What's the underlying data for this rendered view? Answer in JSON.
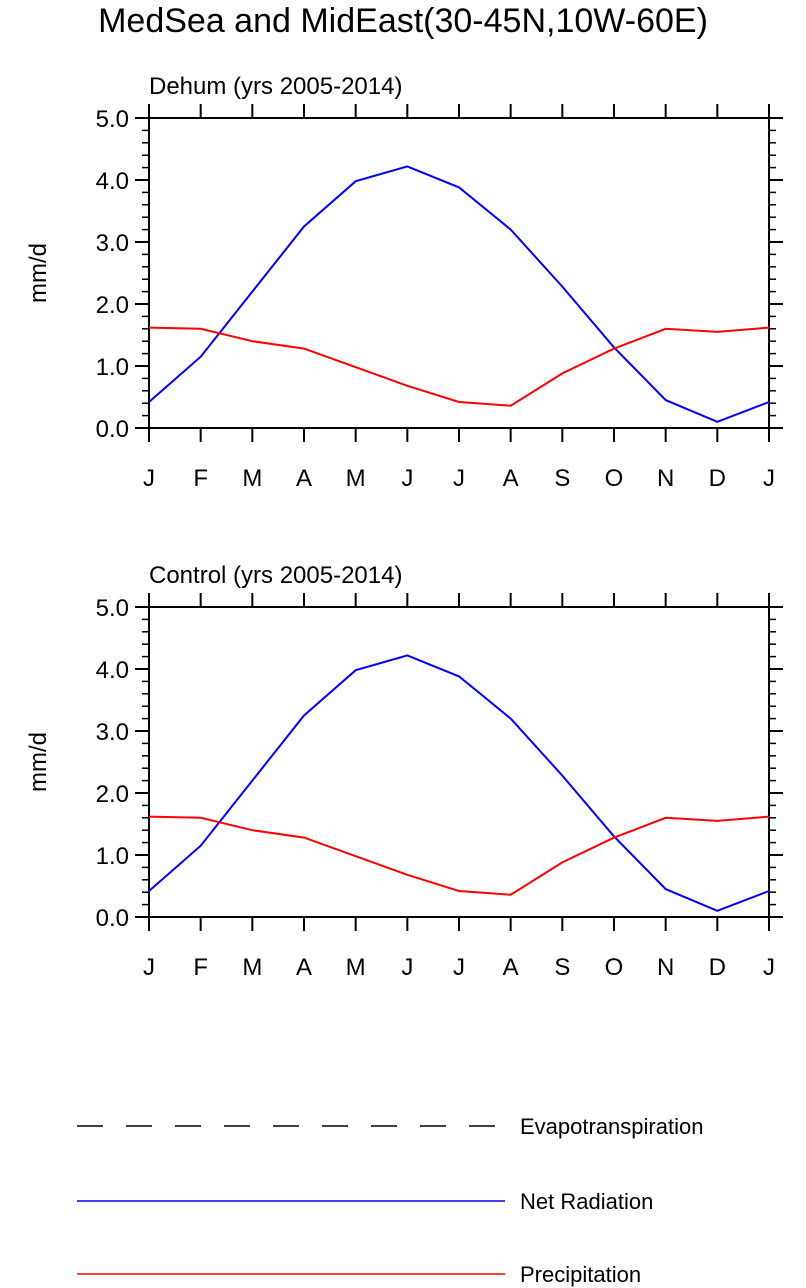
{
  "title": "MedSea and MidEast(30-45N,10W-60E)",
  "colors": {
    "net_radiation": "#0000ff",
    "precipitation": "#ff0000",
    "evapotranspiration": "#000000"
  },
  "legend": [
    {
      "name": "Evapotranspiration",
      "style": "dashed",
      "color": "#000000"
    },
    {
      "name": "Net Radiation",
      "style": "solid",
      "color": "#0000ff"
    },
    {
      "name": "Precipitation",
      "style": "solid",
      "color": "#ff0000"
    }
  ],
  "chart_data": [
    {
      "type": "line",
      "title": "Dehum (yrs 2005-2014)",
      "xlabel": "",
      "ylabel": "mm/d",
      "ylim": [
        0,
        5
      ],
      "yticks": [
        "0.0",
        "1.0",
        "2.0",
        "3.0",
        "4.0",
        "5.0"
      ],
      "categories": [
        "J",
        "F",
        "M",
        "A",
        "M",
        "J",
        "J",
        "A",
        "S",
        "O",
        "N",
        "D",
        "J"
      ],
      "series": [
        {
          "name": "Net Radiation",
          "values": [
            0.42,
            1.15,
            2.2,
            3.25,
            3.98,
            4.22,
            3.88,
            3.2,
            2.28,
            1.3,
            0.45,
            0.1,
            0.42
          ]
        },
        {
          "name": "Precipitation",
          "values": [
            1.62,
            1.6,
            1.4,
            1.28,
            0.98,
            0.68,
            0.42,
            0.36,
            0.88,
            1.28,
            1.6,
            1.55,
            1.62
          ]
        }
      ]
    },
    {
      "type": "line",
      "title": "Control (yrs 2005-2014)",
      "xlabel": "",
      "ylabel": "mm/d",
      "ylim": [
        0,
        5
      ],
      "yticks": [
        "0.0",
        "1.0",
        "2.0",
        "3.0",
        "4.0",
        "5.0"
      ],
      "categories": [
        "J",
        "F",
        "M",
        "A",
        "M",
        "J",
        "J",
        "A",
        "S",
        "O",
        "N",
        "D",
        "J"
      ],
      "series": [
        {
          "name": "Net Radiation",
          "values": [
            0.42,
            1.15,
            2.2,
            3.25,
            3.98,
            4.22,
            3.88,
            3.2,
            2.28,
            1.3,
            0.45,
            0.1,
            0.42
          ]
        },
        {
          "name": "Precipitation",
          "values": [
            1.62,
            1.6,
            1.4,
            1.28,
            0.98,
            0.68,
            0.42,
            0.36,
            0.88,
            1.28,
            1.6,
            1.55,
            1.62
          ]
        }
      ]
    }
  ]
}
